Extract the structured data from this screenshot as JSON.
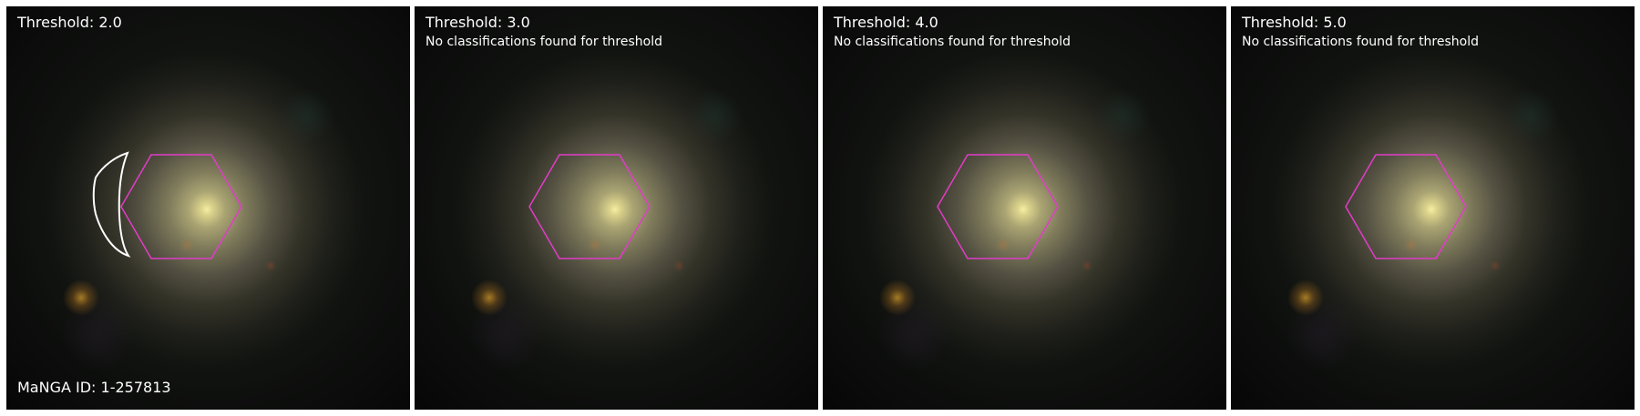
{
  "panels": [
    {
      "title": "Threshold: 2.0",
      "message": ""
    },
    {
      "title": "Threshold: 3.0",
      "message": "No classifications found for threshold"
    },
    {
      "title": "Threshold: 4.0",
      "message": "No classifications found for threshold"
    },
    {
      "title": "Threshold: 5.0",
      "message": "No classifications found for threshold"
    }
  ],
  "manga_label": "MaNGA ID: 1-257813",
  "colors": {
    "hexagon": "#e23cc8",
    "contour": "#ffffff"
  }
}
